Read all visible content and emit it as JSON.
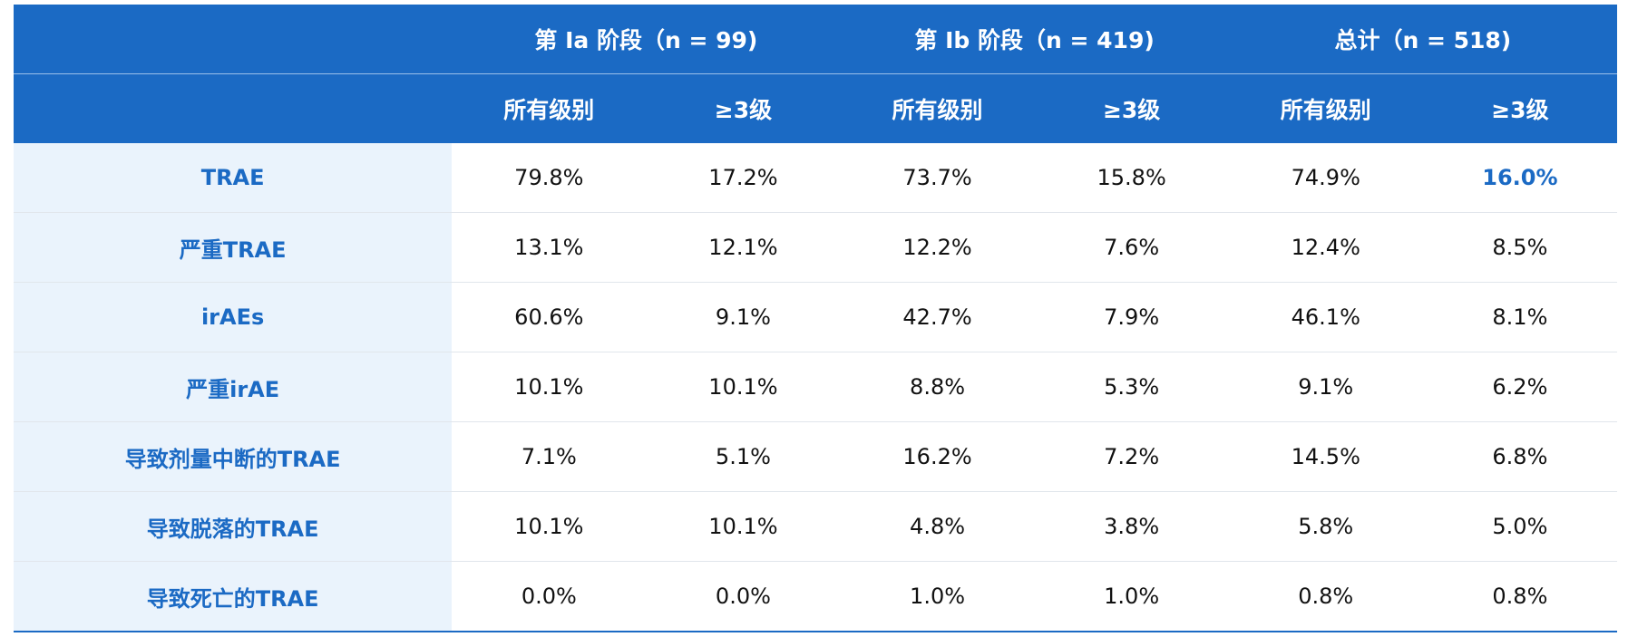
{
  "colors": {
    "header_bg": "#1b6ac4",
    "label_bg": "#eaf3fc",
    "accent": "#1b6ac4"
  },
  "groups": [
    {
      "label": "第 Ia 阶段（n = 99)"
    },
    {
      "label": "第 Ib 阶段（n = 419)"
    },
    {
      "label": "总计（n = 518)"
    }
  ],
  "subheaders": [
    "所有级别",
    "≥3级",
    "所有级别",
    "≥3级",
    "所有级别",
    "≥3级"
  ],
  "rows": [
    {
      "label": "TRAE",
      "cells": [
        "79.8%",
        "17.2%",
        "73.7%",
        "15.8%",
        "74.9%",
        "16.0%"
      ]
    },
    {
      "label": "严重TRAE",
      "cells": [
        "13.1%",
        "12.1%",
        "12.2%",
        "7.6%",
        "12.4%",
        "8.5%"
      ]
    },
    {
      "label": "irAEs",
      "cells": [
        "60.6%",
        "9.1%",
        "42.7%",
        "7.9%",
        "46.1%",
        "8.1%"
      ]
    },
    {
      "label": "严重irAE",
      "cells": [
        "10.1%",
        "10.1%",
        "8.8%",
        "5.3%",
        "9.1%",
        "6.2%"
      ]
    },
    {
      "label": "导致剂量中断的TRAE",
      "cells": [
        "7.1%",
        "5.1%",
        "16.2%",
        "7.2%",
        "14.5%",
        "6.8%"
      ]
    },
    {
      "label": "导致脱落的TRAE",
      "cells": [
        "10.1%",
        "10.1%",
        "4.8%",
        "3.8%",
        "5.8%",
        "5.0%"
      ]
    },
    {
      "label": "导致死亡的TRAE",
      "cells": [
        "0.0%",
        "0.0%",
        "1.0%",
        "1.0%",
        "0.8%",
        "0.8%"
      ]
    }
  ]
}
